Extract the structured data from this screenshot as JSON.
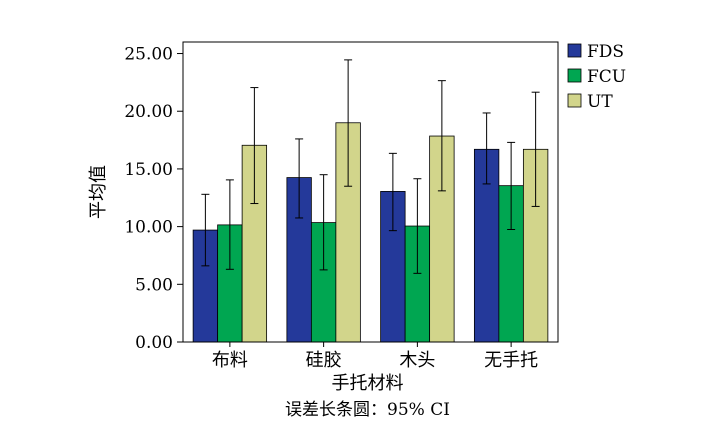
{
  "chart_data": {
    "type": "bar",
    "categories": [
      "布料",
      "硅胶",
      "木头",
      "无手托"
    ],
    "series": [
      {
        "name": "FDS",
        "color": "#24399a",
        "values": [
          9.7,
          14.25,
          13.05,
          16.7
        ],
        "ci_low": [
          6.6,
          10.75,
          9.65,
          13.7
        ],
        "ci_high": [
          12.8,
          17.6,
          16.35,
          19.85
        ]
      },
      {
        "name": "FCU",
        "color": "#00a651",
        "values": [
          10.15,
          10.35,
          10.05,
          13.55
        ],
        "ci_low": [
          6.3,
          6.25,
          5.95,
          9.75
        ],
        "ci_high": [
          14.05,
          14.5,
          14.15,
          17.3
        ]
      },
      {
        "name": "UT",
        "color": "#d2d58b",
        "values": [
          17.05,
          19.0,
          17.85,
          16.7
        ],
        "ci_low": [
          12.0,
          13.5,
          13.1,
          11.75
        ],
        "ci_high": [
          22.05,
          24.45,
          22.65,
          21.65
        ]
      }
    ],
    "xlabel": "手托材料",
    "ylabel": "平均值",
    "ylim": [
      0,
      26
    ],
    "yticks": [
      "0.00",
      "5.00",
      "10.00",
      "15.00",
      "20.00",
      "25.00"
    ],
    "legend_position": "right",
    "note": "误差长条圆：95% CI"
  }
}
